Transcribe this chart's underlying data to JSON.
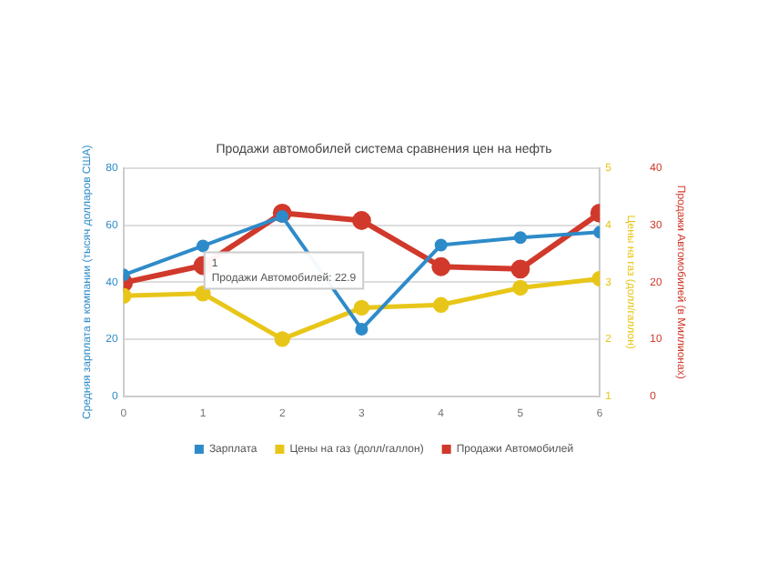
{
  "chart_data": {
    "type": "line",
    "title": "Продажи автомобилей система сравнения цен на нефть",
    "ylabel": "Средняя зарплата в компании (тысяч долларов США)",
    "y2label": "Цены на газ (долл/галлон)",
    "y3label": "Продажи Автомобилей (в Миллионах)",
    "x": [
      0,
      1,
      2,
      3,
      4,
      5,
      6
    ],
    "xlim": [
      0,
      6
    ],
    "xticks": [
      0,
      1,
      2,
      3,
      4,
      5,
      6
    ],
    "ylim": [
      0,
      80
    ],
    "yticks": [
      0,
      20,
      40,
      60,
      80
    ],
    "y2lim": [
      1,
      5
    ],
    "y2ticks": [
      1,
      2,
      3,
      4,
      5
    ],
    "y3lim": [
      0,
      40
    ],
    "y3ticks": [
      0,
      10,
      20,
      30,
      40
    ],
    "series": [
      {
        "name": "Зарплата",
        "color": "#2e8bc9",
        "values": [
          42.5,
          52.7,
          63,
          23.5,
          53,
          55.6,
          57.5
        ]
      },
      {
        "name": "Цены на газ (долл/галлон)",
        "color": "#e8c619",
        "axis": "y2",
        "values": [
          2.76,
          2.8,
          2.0,
          2.55,
          2.6,
          2.9,
          3.06
        ]
      },
      {
        "name": "Продажи Автомобилей",
        "color": "#d0392b",
        "axis": "y3",
        "values": [
          19.9,
          22.9,
          32.1,
          30.8,
          22.7,
          22.3,
          32.1
        ]
      }
    ],
    "annotations": [
      "1",
      "Продажи Автомобилей: 22.9"
    ],
    "grid": "y",
    "legend": "bottom",
    "marker": "circle",
    "line_style": "solid"
  }
}
